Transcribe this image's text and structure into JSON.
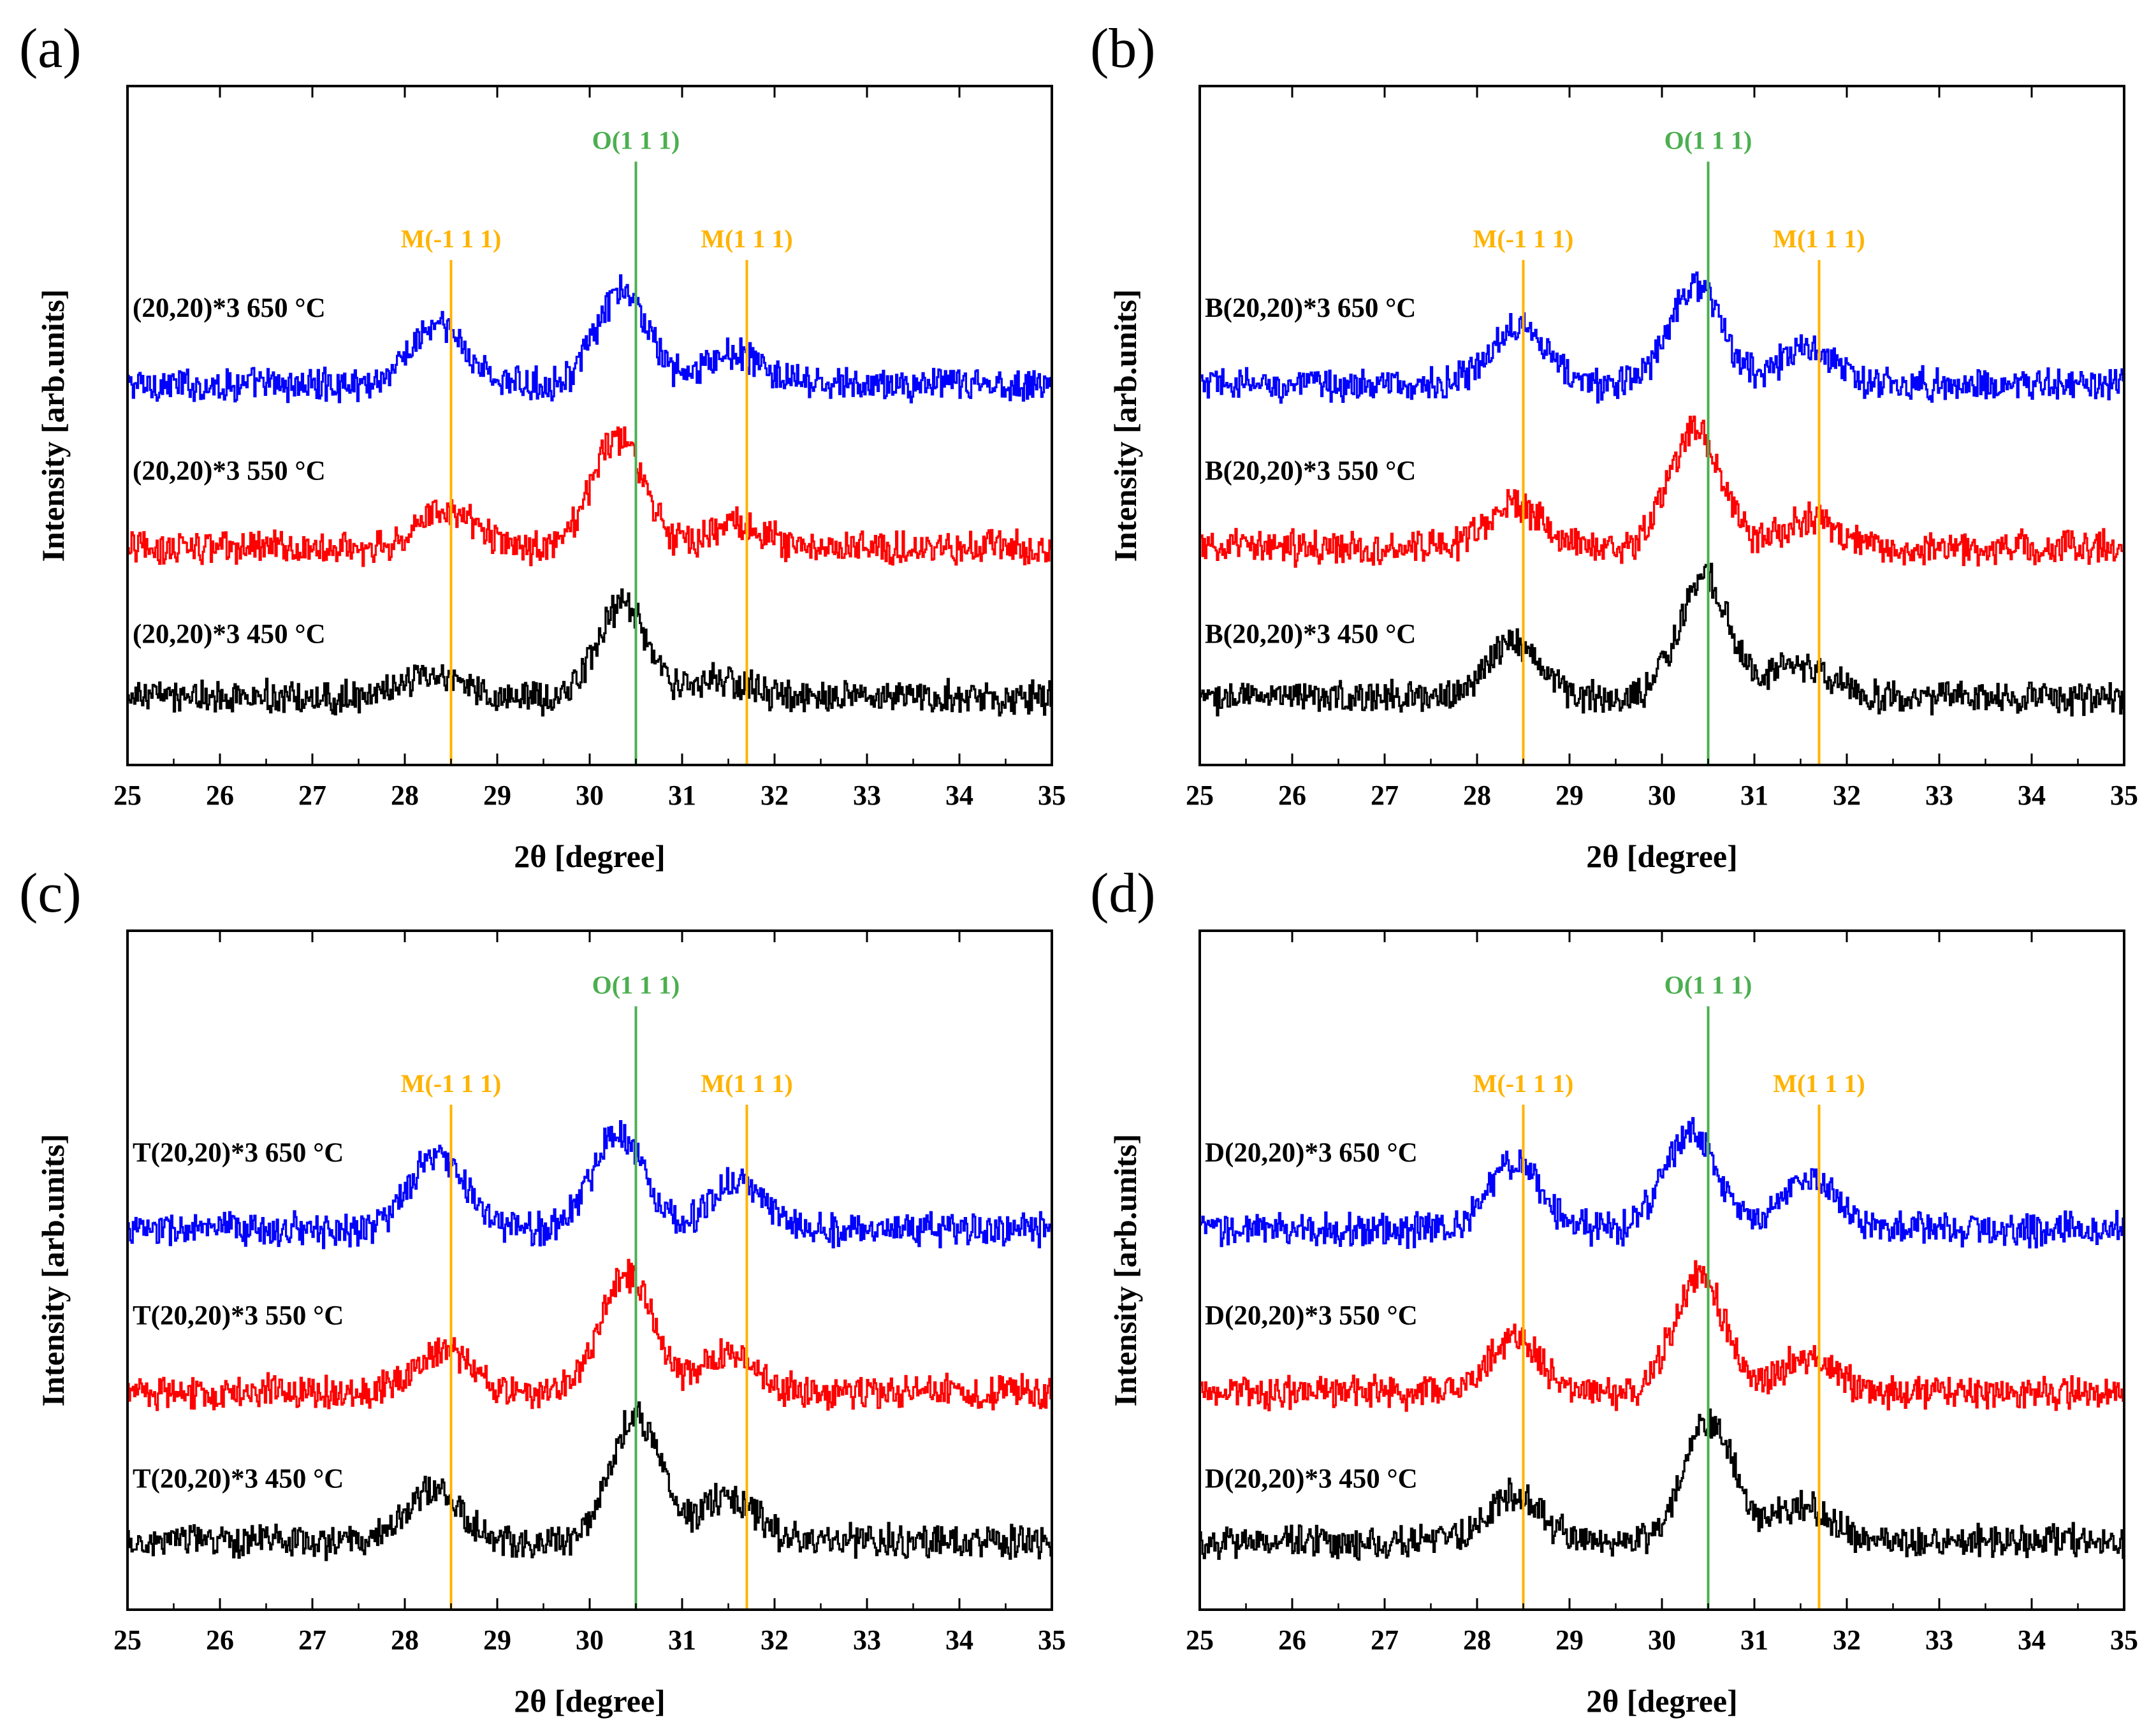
{
  "chart_data": [
    {
      "panel": "(a)",
      "type": "line",
      "xlabel": "2θ [degree]",
      "ylabel": "Intensity [arb.units]",
      "xlim": [
        25,
        35
      ],
      "xticks": [
        25,
        26,
        27,
        28,
        29,
        30,
        31,
        32,
        33,
        34,
        35
      ],
      "reference_lines": [
        {
          "label": "M(-1 1 1)",
          "x": 28.5,
          "color": "#FFB300"
        },
        {
          "label": "O(1 1 1)",
          "x": 30.5,
          "color": "#4CAF50"
        },
        {
          "label": "M(1 1 1)",
          "x": 31.7,
          "color": "#FFB300"
        }
      ],
      "series": [
        {
          "name": "(20,20)*3 650 °C",
          "color": "#0000FF",
          "offset": 2.0,
          "peaks": [
            {
              "x": 28.35,
              "h": 0.6,
              "w": 0.3
            },
            {
              "x": 30.35,
              "h": 0.95,
              "w": 0.28
            },
            {
              "x": 31.55,
              "h": 0.32,
              "w": 0.3
            }
          ]
        },
        {
          "name": "(20,20)*3 550 °C",
          "color": "#FF0000",
          "offset": 1.0,
          "peaks": [
            {
              "x": 28.45,
              "h": 0.4,
              "w": 0.3
            },
            {
              "x": 30.3,
              "h": 1.15,
              "w": 0.27
            },
            {
              "x": 31.6,
              "h": 0.25,
              "w": 0.28
            }
          ]
        },
        {
          "name": "(20,20)*3 450 °C",
          "color": "#000000",
          "offset": 0.0,
          "peaks": [
            {
              "x": 28.3,
              "h": 0.22,
              "w": 0.3
            },
            {
              "x": 30.35,
              "h": 0.95,
              "w": 0.27
            },
            {
              "x": 31.4,
              "h": 0.16,
              "w": 0.3
            }
          ]
        }
      ]
    },
    {
      "panel": "(b)",
      "type": "line",
      "xlabel": "2θ [degree]",
      "ylabel": "Intensity [arb.units]",
      "xlim": [
        25,
        35
      ],
      "xticks": [
        25,
        26,
        27,
        28,
        29,
        30,
        31,
        32,
        33,
        34,
        35
      ],
      "reference_lines": [
        {
          "label": "M(-1 1 1)",
          "x": 28.5,
          "color": "#FFB300"
        },
        {
          "label": "O(1 1 1)",
          "x": 30.5,
          "color": "#4CAF50"
        },
        {
          "label": "M(1 1 1)",
          "x": 31.7,
          "color": "#FFB300"
        }
      ],
      "series": [
        {
          "name": "B(20,20)*3 650 °C",
          "color": "#0000FF",
          "offset": 2.0,
          "peaks": [
            {
              "x": 28.45,
              "h": 0.65,
              "w": 0.28
            },
            {
              "x": 30.35,
              "h": 1.05,
              "w": 0.28
            },
            {
              "x": 31.55,
              "h": 0.38,
              "w": 0.3
            }
          ]
        },
        {
          "name": "B(20,20)*3 550 °C",
          "color": "#FF0000",
          "offset": 1.0,
          "peaks": [
            {
              "x": 28.4,
              "h": 0.45,
              "w": 0.3
            },
            {
              "x": 30.35,
              "h": 1.2,
              "w": 0.28
            },
            {
              "x": 31.6,
              "h": 0.3,
              "w": 0.3
            }
          ]
        },
        {
          "name": "B(20,20)*3 450 °C",
          "color": "#000000",
          "offset": 0.0,
          "peaks": [
            {
              "x": 28.4,
              "h": 0.55,
              "w": 0.28
            },
            {
              "x": 30.45,
              "h": 1.25,
              "w": 0.27
            },
            {
              "x": 31.5,
              "h": 0.35,
              "w": 0.3
            }
          ]
        }
      ]
    },
    {
      "panel": "(c)",
      "type": "line",
      "xlabel": "2θ [degree]",
      "ylabel": "Intensity [arb.units]",
      "xlim": [
        25,
        35
      ],
      "xticks": [
        25,
        26,
        27,
        28,
        29,
        30,
        31,
        32,
        33,
        34,
        35
      ],
      "reference_lines": [
        {
          "label": "M(-1 1 1)",
          "x": 28.5,
          "color": "#FFB300"
        },
        {
          "label": "O(1 1 1)",
          "x": 30.5,
          "color": "#4CAF50"
        },
        {
          "label": "M(1 1 1)",
          "x": 31.7,
          "color": "#FFB300"
        }
      ],
      "series": [
        {
          "name": "T(20,20)*3 650 °C",
          "color": "#0000FF",
          "offset": 2.0,
          "peaks": [
            {
              "x": 28.35,
              "h": 0.75,
              "w": 0.3
            },
            {
              "x": 30.3,
              "h": 1.0,
              "w": 0.28
            },
            {
              "x": 31.6,
              "h": 0.48,
              "w": 0.3
            }
          ]
        },
        {
          "name": "T(20,20)*3 550 °C",
          "color": "#FF0000",
          "offset": 1.0,
          "peaks": [
            {
              "x": 28.4,
              "h": 0.45,
              "w": 0.3
            },
            {
              "x": 30.4,
              "h": 1.2,
              "w": 0.28
            },
            {
              "x": 31.5,
              "h": 0.38,
              "w": 0.3
            }
          ]
        },
        {
          "name": "T(20,20)*3 450 °C",
          "color": "#000000",
          "offset": 0.0,
          "peaks": [
            {
              "x": 28.3,
              "h": 0.55,
              "w": 0.28
            },
            {
              "x": 30.5,
              "h": 1.3,
              "w": 0.27
            },
            {
              "x": 31.5,
              "h": 0.45,
              "w": 0.3
            }
          ]
        }
      ]
    },
    {
      "panel": "(d)",
      "type": "line",
      "xlabel": "2θ [degree]",
      "ylabel": "Intensity [arb.units]",
      "xlim": [
        25,
        35
      ],
      "xticks": [
        25,
        26,
        27,
        28,
        29,
        30,
        31,
        32,
        33,
        34,
        35
      ],
      "reference_lines": [
        {
          "label": "M(-1 1 1)",
          "x": 28.5,
          "color": "#FFB300"
        },
        {
          "label": "O(1 1 1)",
          "x": 30.5,
          "color": "#4CAF50"
        },
        {
          "label": "M(1 1 1)",
          "x": 31.7,
          "color": "#FFB300"
        }
      ],
      "series": [
        {
          "name": "D(20,20)*3 650 °C",
          "color": "#0000FF",
          "offset": 2.0,
          "peaks": [
            {
              "x": 28.4,
              "h": 0.7,
              "w": 0.28
            },
            {
              "x": 30.3,
              "h": 1.0,
              "w": 0.28
            },
            {
              "x": 31.6,
              "h": 0.52,
              "w": 0.3
            }
          ]
        },
        {
          "name": "D(20,20)*3 550 °C",
          "color": "#FF0000",
          "offset": 1.0,
          "peaks": [
            {
              "x": 28.4,
              "h": 0.55,
              "w": 0.28
            },
            {
              "x": 30.4,
              "h": 1.2,
              "w": 0.27
            },
            {
              "x": 31.55,
              "h": 0.35,
              "w": 0.3
            }
          ]
        },
        {
          "name": "D(20,20)*3 450 °C",
          "color": "#000000",
          "offset": 0.0,
          "peaks": [
            {
              "x": 28.4,
              "h": 0.5,
              "w": 0.28
            },
            {
              "x": 30.5,
              "h": 1.25,
              "w": 0.27
            },
            {
              "x": 31.5,
              "h": 0.35,
              "w": 0.3
            }
          ]
        }
      ]
    }
  ]
}
